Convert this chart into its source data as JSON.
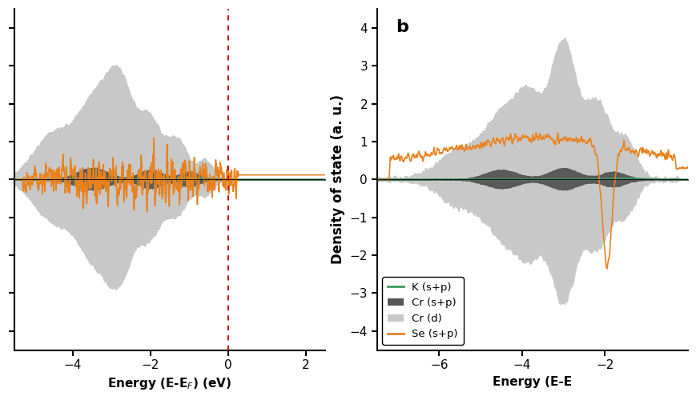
{
  "panel_b_label": "b",
  "xlabel_a": "Energy (E-E$_F$) (eV)",
  "xlabel_b": "Energy (E-E",
  "ylabel": "Density of state (a. u.)",
  "xlim_a": [
    -5.5,
    2.5
  ],
  "xlim_b": [
    -7.5,
    0.0
  ],
  "ylim": [
    -4.5,
    4.5
  ],
  "yticks": [
    -4,
    -3,
    -2,
    -1,
    0,
    1,
    2,
    3,
    4
  ],
  "xticks_a": [
    -4,
    -2,
    0,
    2
  ],
  "xticks_b": [
    -6,
    -4,
    -2
  ],
  "vline_x": 0.0,
  "vline_color": "#cc0000",
  "colors": {
    "K_sp": "#3a9c5f",
    "Cr_sp": "#555555",
    "Cr_d_light": "#c8c8c8",
    "Se_sp": "#e8821e"
  },
  "background_color": "#ffffff",
  "seed": 42
}
